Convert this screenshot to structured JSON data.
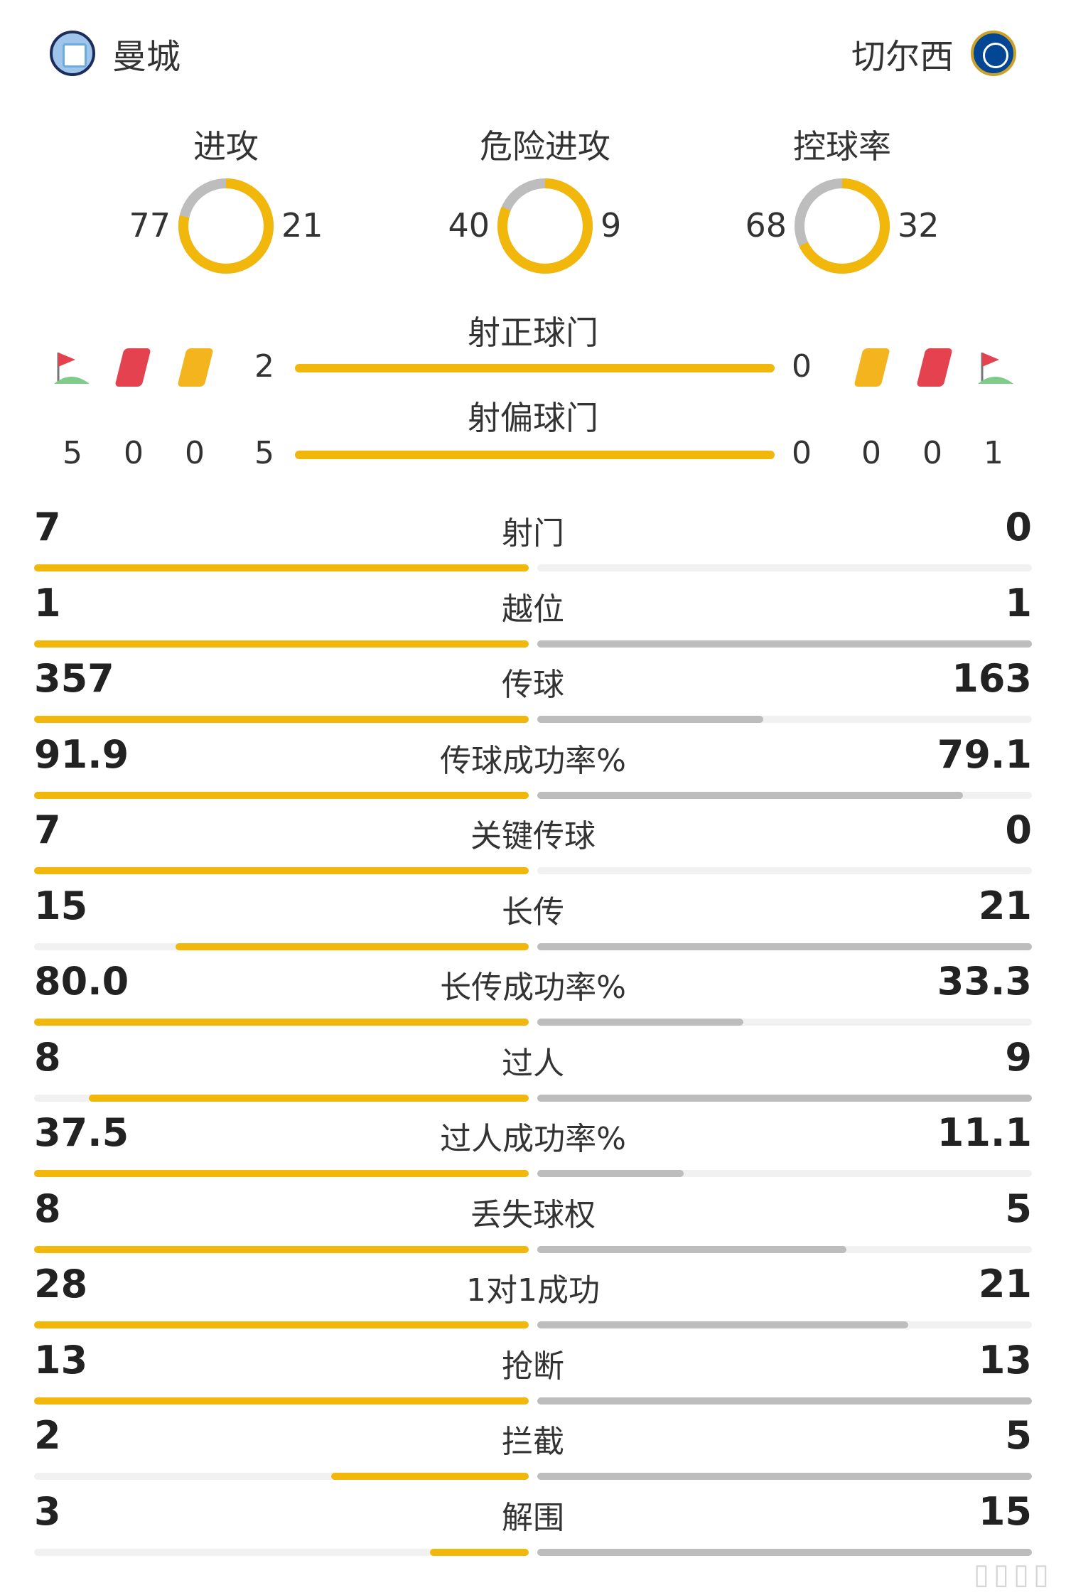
{
  "teams": {
    "home": {
      "name": "曼城",
      "logo": "man-city-crest"
    },
    "away": {
      "name": "切尔西",
      "logo": "chelsea-crest"
    }
  },
  "colors": {
    "home": "#f1b70a",
    "away": "#bdbdbd",
    "track": "#f1f1f1"
  },
  "donuts": [
    {
      "title": "进攻",
      "home": "77",
      "away": "21"
    },
    {
      "title": "危险进攻",
      "home": "40",
      "away": "9"
    },
    {
      "title": "控球率",
      "home": "68",
      "away": "32"
    }
  ],
  "shots_on": {
    "title": "射正球门",
    "home": "2",
    "away": "0"
  },
  "shots_off": {
    "title": "射偏球门",
    "home": "5",
    "away": "0"
  },
  "discipline": {
    "home": {
      "corners": "5",
      "red": "0",
      "yellow": "0"
    },
    "away": {
      "yellow": "0",
      "red": "0",
      "corners": "1"
    }
  },
  "stats": [
    {
      "label": "射门",
      "home": "7",
      "away": "0"
    },
    {
      "label": "越位",
      "home": "1",
      "away": "1"
    },
    {
      "label": "传球",
      "home": "357",
      "away": "163"
    },
    {
      "label": "传球成功率%",
      "home": "91.9",
      "away": "79.1"
    },
    {
      "label": "关键传球",
      "home": "7",
      "away": "0"
    },
    {
      "label": "长传",
      "home": "15",
      "away": "21"
    },
    {
      "label": "长传成功率%",
      "home": "80.0",
      "away": "33.3"
    },
    {
      "label": "过人",
      "home": "8",
      "away": "9"
    },
    {
      "label": "过人成功率%",
      "home": "37.5",
      "away": "11.1"
    },
    {
      "label": "丢失球权",
      "home": "8",
      "away": "5"
    },
    {
      "label": "1对1成功",
      "home": "28",
      "away": "21"
    },
    {
      "label": "抢断",
      "home": "13",
      "away": "13"
    },
    {
      "label": "拦截",
      "home": "2",
      "away": "5"
    },
    {
      "label": "解围",
      "home": "3",
      "away": "15"
    }
  ]
}
